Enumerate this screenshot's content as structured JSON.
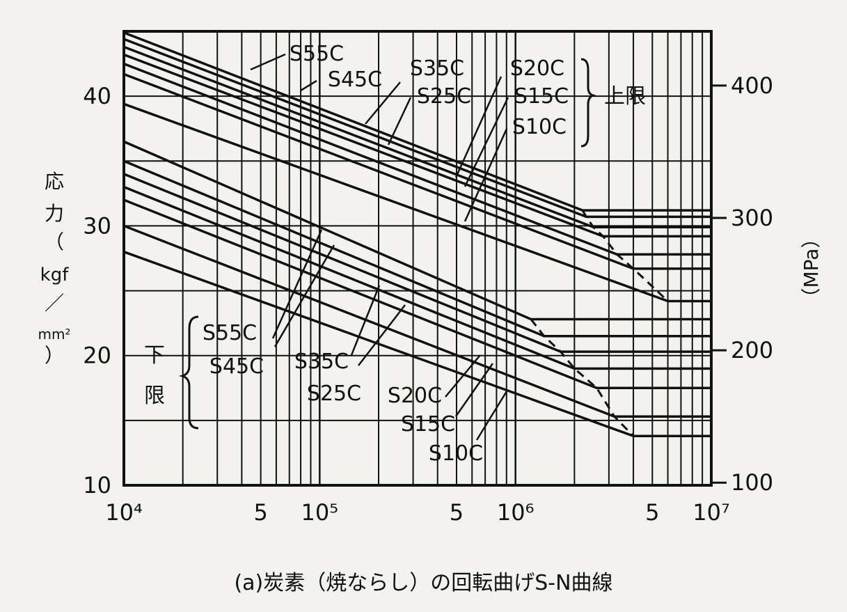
{
  "chart_data": {
    "type": "line",
    "title": "",
    "xlabel": "",
    "ylabel": "応力（kgf/mm²）",
    "ylabel_parts": [
      "応",
      "力",
      "（",
      "kgf",
      "／",
      "mm²",
      "）"
    ],
    "y2label": "（MPa）",
    "x_scale": "log",
    "xlim": [
      10000,
      10000000
    ],
    "ylim": [
      10,
      45
    ],
    "y2lim": [
      98,
      441
    ],
    "x_ticks": [
      {
        "value": 10000,
        "label": "10⁴"
      },
      {
        "value": 50000,
        "label": "5"
      },
      {
        "value": 100000,
        "label": "10⁵"
      },
      {
        "value": 500000,
        "label": "5"
      },
      {
        "value": 1000000,
        "label": "10⁶"
      },
      {
        "value": 5000000,
        "label": "5"
      },
      {
        "value": 10000000,
        "label": "10⁷"
      }
    ],
    "y_ticks": [
      10,
      20,
      30,
      40
    ],
    "y2_ticks": [
      100,
      200,
      300,
      400
    ],
    "grid": true,
    "groups": [
      {
        "label": "上限",
        "series_labels": [
          "S55C",
          "S45C",
          "S35C",
          "S25C",
          "S20C",
          "S15C",
          "S10C"
        ]
      },
      {
        "label": "下限",
        "series_labels": [
          "S55C",
          "S45C",
          "S35C",
          "S25C",
          "S20C",
          "S15C",
          "S10C"
        ]
      }
    ],
    "series": [
      {
        "name": "S55C",
        "group": "上限",
        "x": [
          10000,
          2200000,
          10000000
        ],
        "y": [
          44.9,
          31.2,
          31.2
        ]
      },
      {
        "name": "S45C",
        "group": "上限",
        "x": [
          10000,
          2300000,
          10000000
        ],
        "y": [
          44.4,
          30.7,
          30.7
        ]
      },
      {
        "name": "S35C",
        "group": "上限",
        "x": [
          10000,
          2500000,
          10000000
        ],
        "y": [
          43.8,
          29.9,
          29.9
        ]
      },
      {
        "name": "S25C",
        "group": "上限",
        "x": [
          10000,
          2800000,
          10000000
        ],
        "y": [
          43.2,
          29.2,
          29.2
        ]
      },
      {
        "name": "S20C",
        "group": "上限",
        "x": [
          10000,
          3300000,
          10000000
        ],
        "y": [
          42.5,
          27.8,
          27.8
        ]
      },
      {
        "name": "S15C",
        "group": "上限",
        "x": [
          10000,
          4000000,
          10000000
        ],
        "y": [
          41.7,
          26.7,
          26.7
        ]
      },
      {
        "name": "S10C",
        "group": "上限",
        "x": [
          10000,
          6000000,
          10000000
        ],
        "y": [
          39.4,
          24.2,
          24.2
        ]
      },
      {
        "name": "S55C",
        "group": "下限",
        "x": [
          10000,
          1200000,
          10000000
        ],
        "y": [
          36.5,
          22.8,
          22.8
        ]
      },
      {
        "name": "S45C",
        "group": "下限",
        "x": [
          10000,
          1400000,
          10000000
        ],
        "y": [
          35.0,
          21.5,
          21.5
        ]
      },
      {
        "name": "S35C",
        "group": "下限",
        "x": [
          10000,
          1700000,
          10000000
        ],
        "y": [
          34.0,
          20.3,
          20.3
        ]
      },
      {
        "name": "S25C",
        "group": "下限",
        "x": [
          10000,
          2000000,
          10000000
        ],
        "y": [
          33.0,
          19.0,
          19.0
        ]
      },
      {
        "name": "S20C",
        "group": "下限",
        "x": [
          10000,
          2600000,
          10000000
        ],
        "y": [
          32.0,
          17.5,
          17.5
        ]
      },
      {
        "name": "S15C",
        "group": "下限",
        "x": [
          10000,
          3200000,
          10000000
        ],
        "y": [
          30.0,
          15.3,
          15.3
        ]
      },
      {
        "name": "S10C",
        "group": "下限",
        "x": [
          10000,
          4000000,
          10000000
        ],
        "y": [
          28.0,
          13.8,
          13.8
        ]
      }
    ]
  },
  "caption": "(a)炭素（焼ならし）の回転曲げS-N曲線",
  "colors": {
    "ink": "#111111",
    "paper": "#f3f2ee"
  }
}
